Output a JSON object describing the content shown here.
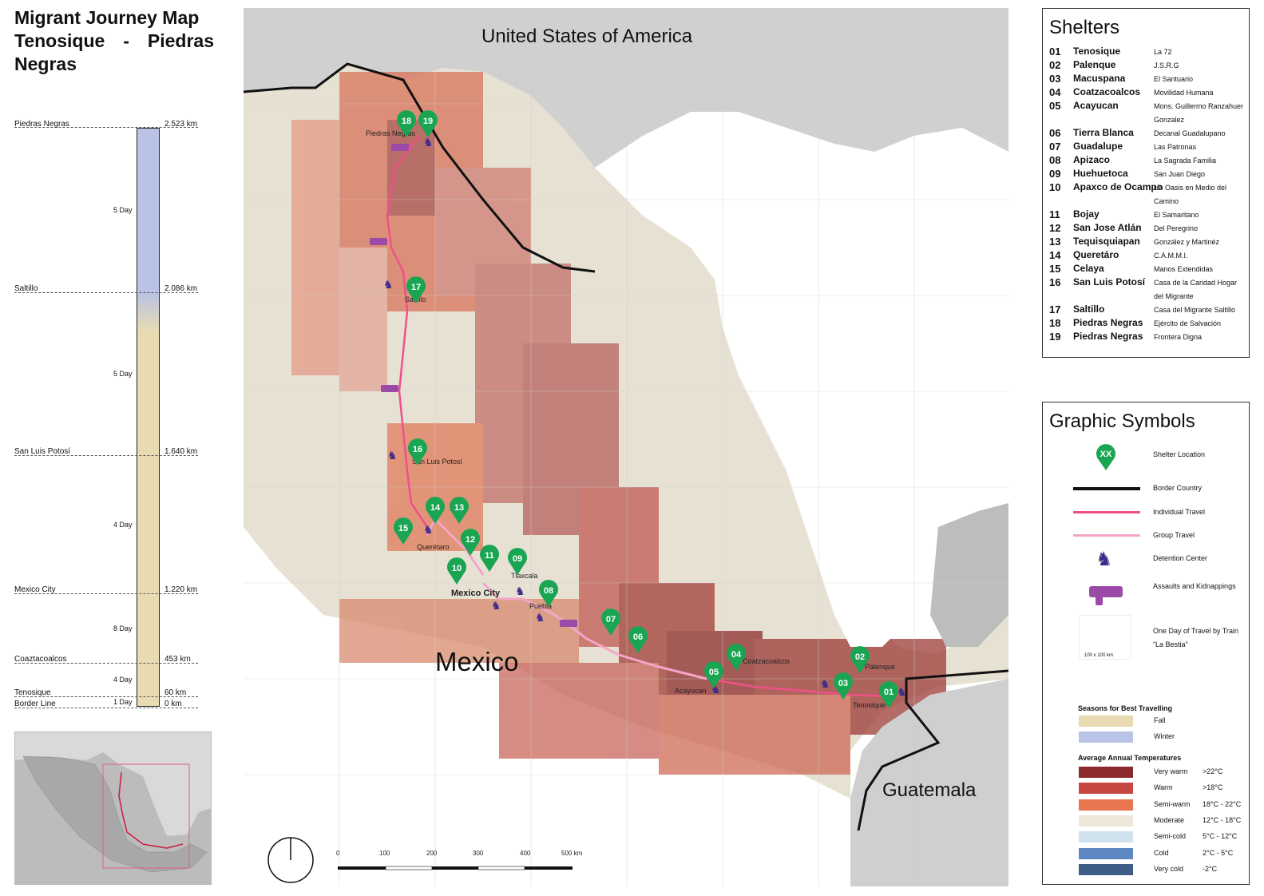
{
  "title": {
    "line1": "Migrant Journey Map",
    "line2a": "Tenosique",
    "line2b": "-",
    "line2c": "Piedras",
    "line3": "Negras"
  },
  "timeline": {
    "stops": [
      {
        "place": "Piedras Negras",
        "km": "2.523 km"
      },
      {
        "place": "Saltillo",
        "km": "2.086 km"
      },
      {
        "place": "San Luis Potosí",
        "km": "1.640 km"
      },
      {
        "place": "Mexico City",
        "km": "1.220 km"
      },
      {
        "place": "Coaztacoalcos",
        "km": "453 km"
      },
      {
        "place": "Tenosique",
        "km": "60 km"
      },
      {
        "place": "Border Line",
        "km": "0 km"
      }
    ],
    "days": [
      "5 Day",
      "5 Day",
      "4 Day",
      "8 Day",
      "4 Day",
      "1 Day"
    ]
  },
  "map": {
    "labels": {
      "usa": "United States of America",
      "mexico": "Mexico",
      "guatemala": "Guatemala"
    },
    "cities": [
      "Piedras Negras",
      "Saltillo",
      "San Luis Potosí",
      "Querétaro",
      "Tlaxcala",
      "Mexico City",
      "Puebla",
      "Coatzacoalcos",
      "Acayucan",
      "Palenque",
      "Tenosique"
    ],
    "pins": [
      "18",
      "19",
      "17",
      "16",
      "14",
      "13",
      "15",
      "12",
      "11",
      "09",
      "10",
      "08",
      "07",
      "06",
      "04",
      "05",
      "02",
      "03",
      "01"
    ],
    "scale": [
      "0",
      "100",
      "200",
      "300",
      "400",
      "500 km"
    ]
  },
  "shelters": {
    "title": "Shelters",
    "rows": [
      {
        "num": "01",
        "town": "Tenosique",
        "name": "La 72"
      },
      {
        "num": "02",
        "town": "Palenque",
        "name": "J.S.R.G"
      },
      {
        "num": "03",
        "town": "Macuspana",
        "name": "El Santuario"
      },
      {
        "num": "04",
        "town": "Coatzacoalcos",
        "name": "Movilidad Humana"
      },
      {
        "num": "05",
        "town": "Acayucan",
        "name": "Mons. Guillermo Ranzahuer Gonzalez"
      },
      {
        "num": "06",
        "town": "Tierra Blanca",
        "name": "Decanal Guadalupano"
      },
      {
        "num": "07",
        "town": "Guadalupe",
        "name": "Las Patronas"
      },
      {
        "num": "08",
        "town": "Apizaco",
        "name": "La Sagrada Familia"
      },
      {
        "num": "09",
        "town": "Huehuetoca",
        "name": "San Juan Diego"
      },
      {
        "num": "10",
        "town": "Apaxco de Ocampo",
        "name": "Un Oasis en Medio del Camino"
      },
      {
        "num": "11",
        "town": "Bojay",
        "name": "El Samaritano"
      },
      {
        "num": "12",
        "town": "San Jose Atlán",
        "name": "Del Peregrino"
      },
      {
        "num": "13",
        "town": "Tequisquiapan",
        "name": "González y Martinéz"
      },
      {
        "num": "14",
        "town": "Queretáro",
        "name": "C.A.M.M.I."
      },
      {
        "num": "15",
        "town": "Celaya",
        "name": "Manos Extendidas"
      },
      {
        "num": "16",
        "town": "San Luis Potosí",
        "name": "Casa de la Caridad Hogar del Migrante"
      },
      {
        "num": "17",
        "town": "Saltillo",
        "name": "Casa del Migrante Saltillo"
      },
      {
        "num": "18",
        "town": "Piedras Negras",
        "name": "Ejército de Salvación"
      },
      {
        "num": "19",
        "town": "Piedras Negras",
        "name": "Frontera Digna"
      }
    ]
  },
  "symbols": {
    "title": "Graphic Symbols",
    "pin_text": "XX",
    "items": [
      {
        "icon": "shelter-pin-icon",
        "label": "Shelter Location"
      },
      {
        "icon": "border-line-icon",
        "label": "Border Country"
      },
      {
        "icon": "individual-travel-line-icon",
        "label": "Individual Travel"
      },
      {
        "icon": "group-travel-line-icon",
        "label": "Group Travel"
      },
      {
        "icon": "detention-center-icon",
        "label": "Detention Center"
      },
      {
        "icon": "gun-icon",
        "label": "Assaults and Kidnappings"
      },
      {
        "icon": "grid-square-icon",
        "label": "One Day of Travel by Train “La Bestia”"
      }
    ],
    "grid_caption": "100 x 100 km",
    "seasons_title": "Seasons for Best Travelling",
    "seasons": [
      {
        "label": "Fall",
        "color": "#e8dbb2"
      },
      {
        "label": "Winter",
        "color": "#b9c3e6"
      }
    ],
    "temps_title": "Average Annual  Temperatures",
    "temps": [
      {
        "label": "Very warm",
        "range": ">22°C",
        "color": "#8c2a2e"
      },
      {
        "label": "Warm",
        "range": ">18°C",
        "color": "#c6473f"
      },
      {
        "label": "Semi-warm",
        "range": "18°C - 22°C",
        "color": "#e8764f"
      },
      {
        "label": "Moderate",
        "range": "12°C - 18°C",
        "color": "#ece7d9"
      },
      {
        "label": "Semi-cold",
        "range": "5°C - 12°C",
        "color": "#cfe2ee"
      },
      {
        "label": "Cold",
        "range": "2°C - 5°C",
        "color": "#5d87c0"
      },
      {
        "label": "Very cold",
        "range": "-2°C",
        "color": "#3e5d87"
      }
    ]
  },
  "colors": {
    "route_individual": "#f0508a",
    "route_group": "#f3a6c8",
    "pin": "#1aa553",
    "detention": "#3e2a8a",
    "gun": "#9b4aa8",
    "border": "#111111",
    "land_gray": "#d0d0d0"
  }
}
